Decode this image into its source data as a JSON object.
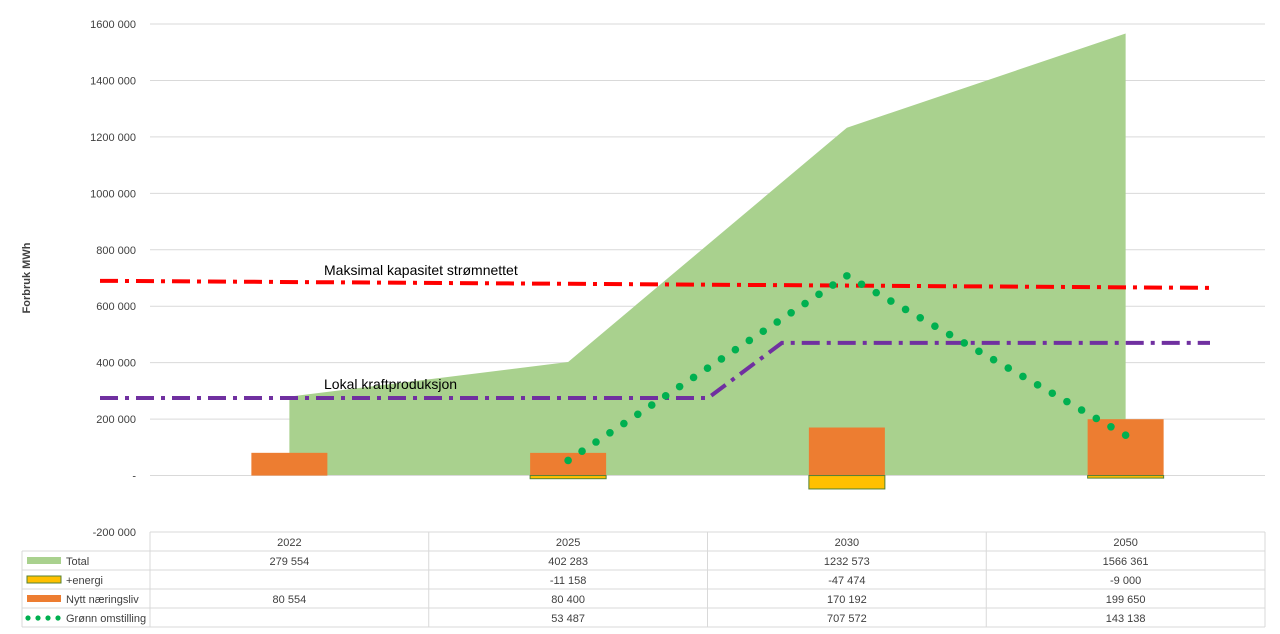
{
  "chart_data": {
    "type": "area",
    "ylabel": "Forbruk MWh",
    "ylim": [
      -200000,
      1600000
    ],
    "y_ticks": [
      "1600 000",
      "1400 000",
      "1200 000",
      "1000 000",
      "800 000",
      "600 000",
      "400 000",
      "200 000",
      "-",
      "-200 000"
    ],
    "y_tick_values": [
      1600000,
      1400000,
      1200000,
      1000000,
      800000,
      600000,
      400000,
      200000,
      0,
      -200000
    ],
    "categories": [
      "2022",
      "2025",
      "2030",
      "2050"
    ],
    "grid": true,
    "series": [
      {
        "name": "Total",
        "kind": "area",
        "color": "#a9d18e",
        "values": [
          279554,
          402283,
          1232573,
          1566361
        ],
        "labels": [
          "279 554",
          "402 283",
          "1232 573",
          "1566 361"
        ]
      },
      {
        "name": "+energi",
        "kind": "bar",
        "color": "#ffc000",
        "values": [
          null,
          -11158,
          -47474,
          -9000
        ],
        "labels": [
          "",
          "-11 158",
          "-47 474",
          "-9 000"
        ]
      },
      {
        "name": "Nytt næringsliv",
        "kind": "bar",
        "color": "#ed7d31",
        "values": [
          80554,
          80400,
          170192,
          199650
        ],
        "labels": [
          "80 554",
          "80 400",
          "170 192",
          "199 650"
        ]
      },
      {
        "name": "Grønn omstilling",
        "kind": "dotted-line",
        "color": "#00b050",
        "values": [
          null,
          53487,
          707572,
          143138
        ],
        "labels": [
          "",
          "53 487",
          "707 572",
          "143 138"
        ]
      }
    ],
    "reference_lines": [
      {
        "label": "Maksimal kapasitet strømnettet",
        "color": "#ff0000",
        "start": 690000,
        "end": 665000
      },
      {
        "label": "Lokal kraftproduksjon",
        "color": "#7030a0",
        "values": [
          275000,
          275000,
          470000,
          470000
        ]
      }
    ]
  }
}
